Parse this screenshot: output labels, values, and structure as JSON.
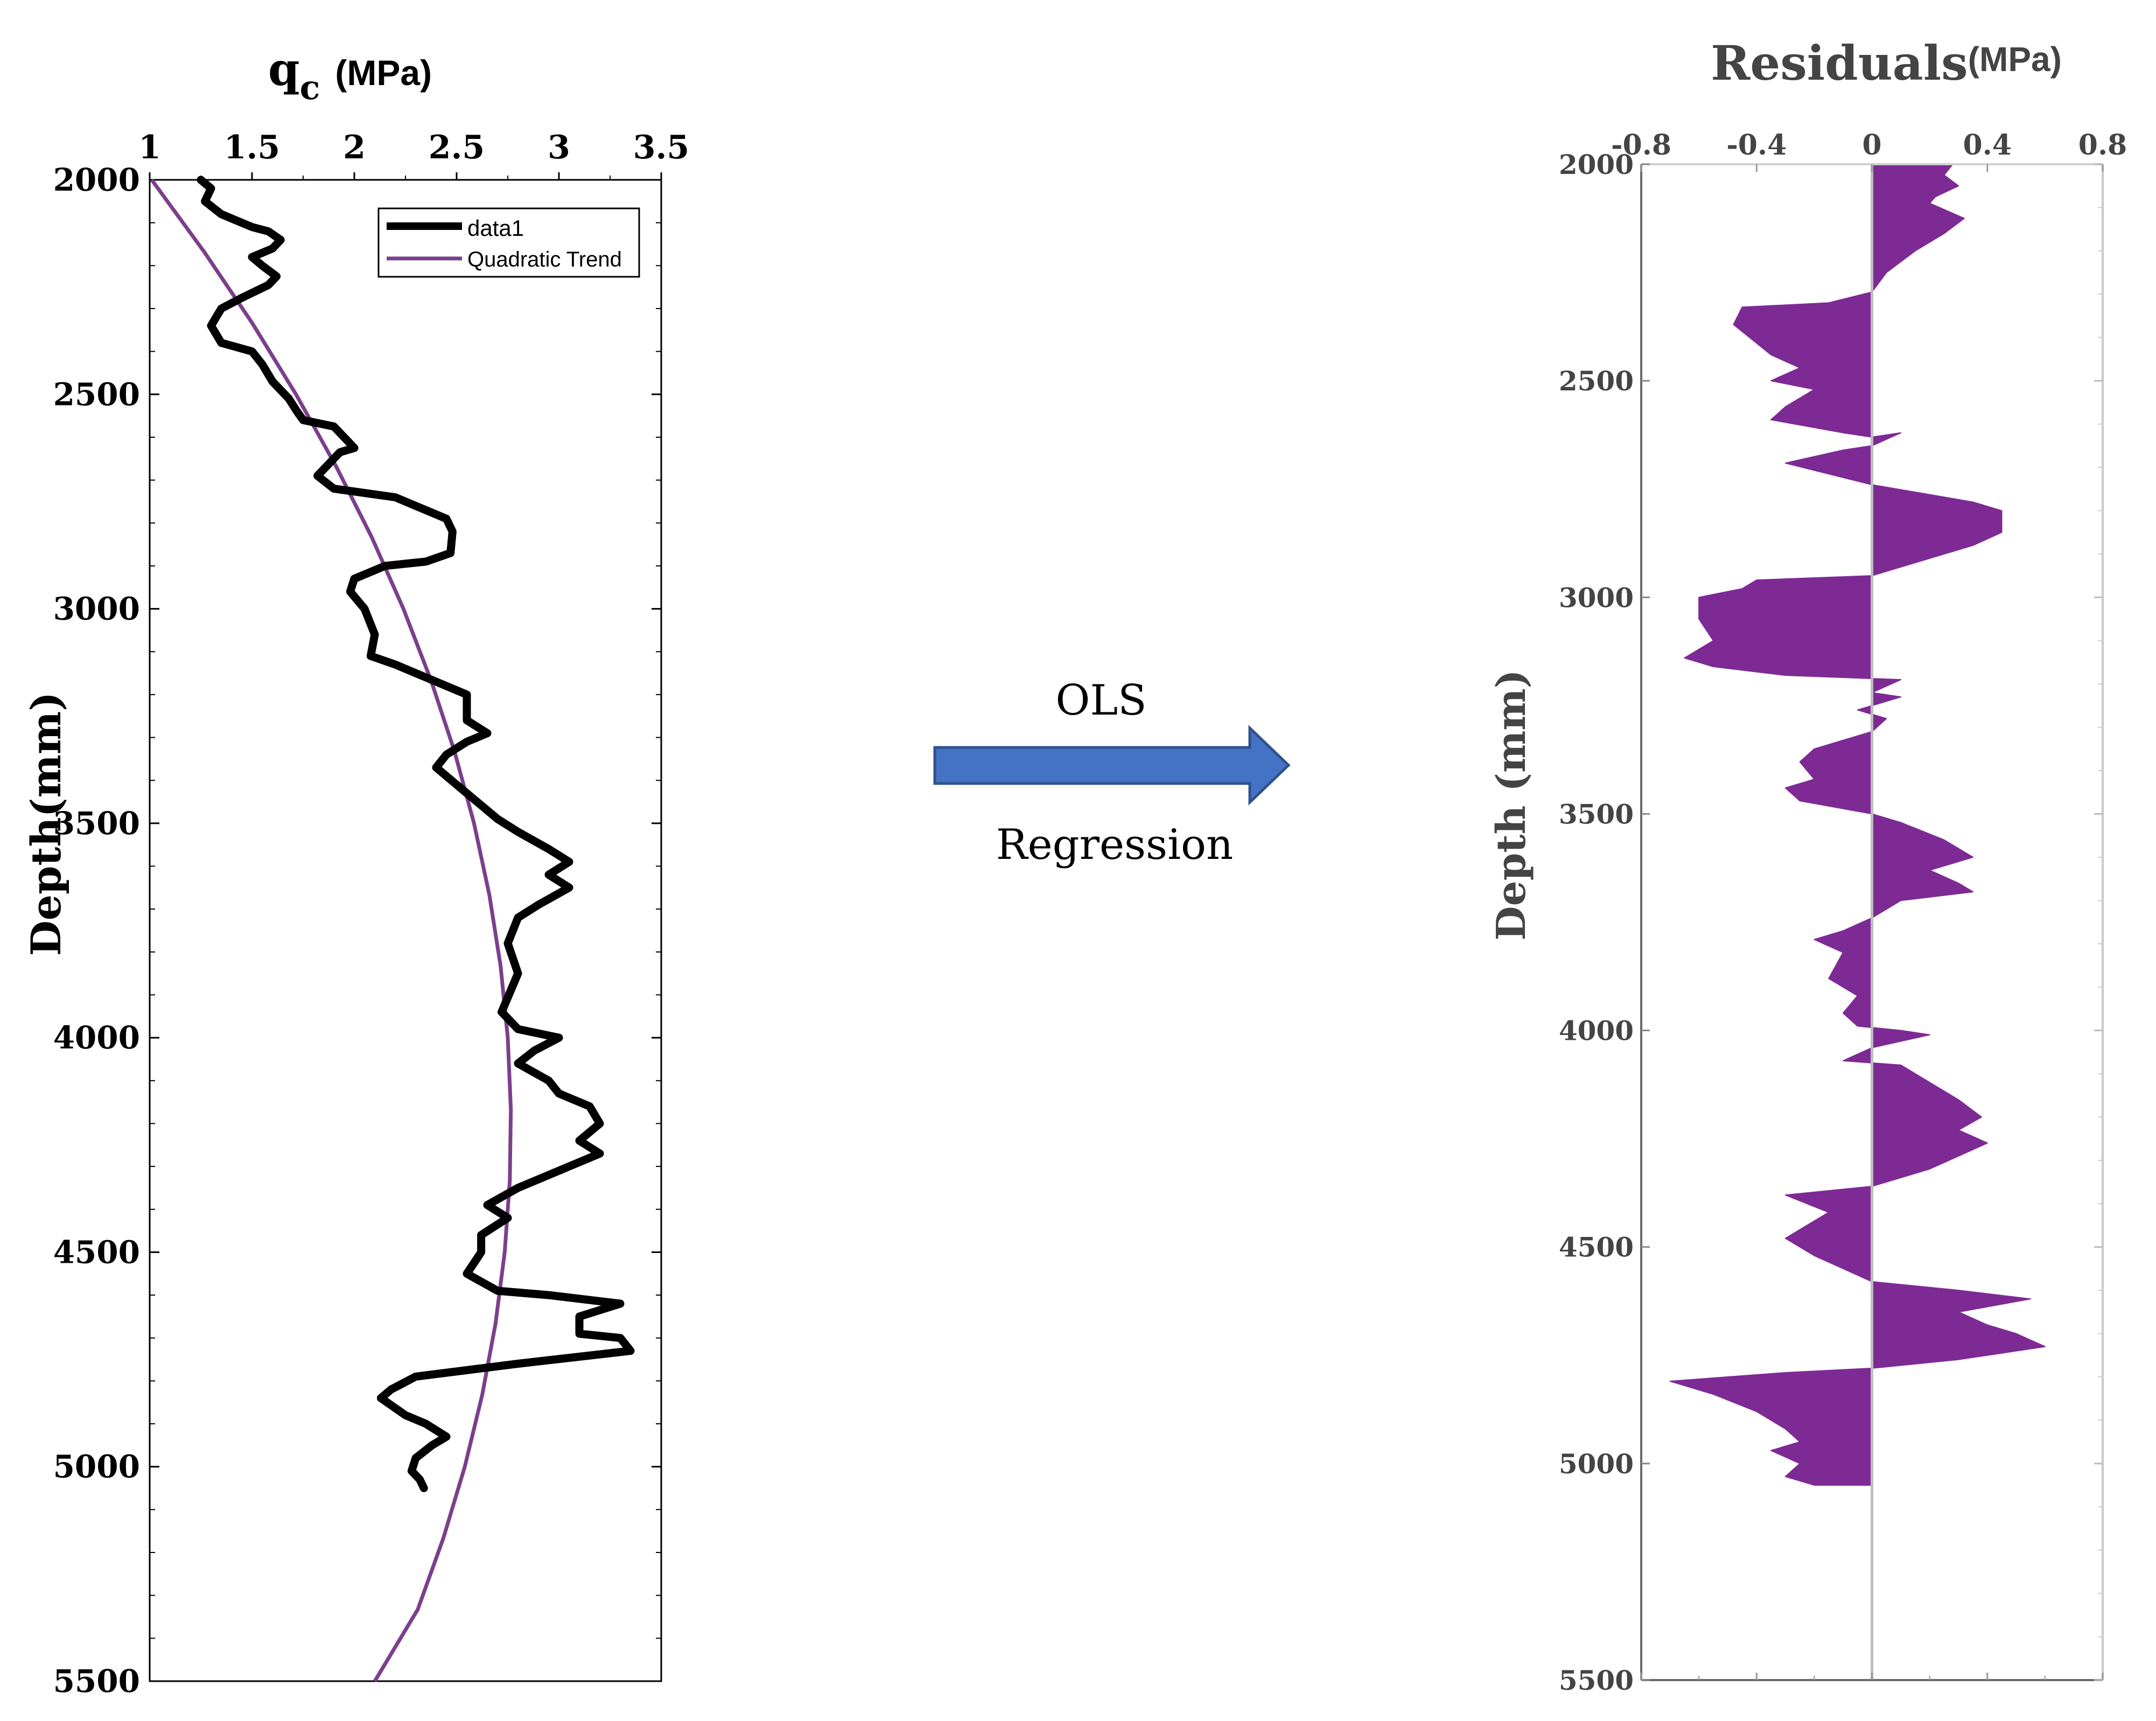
{
  "chart_data": [
    {
      "type": "line",
      "title": "q",
      "title_subscript": "c",
      "title_unit": "(MPa)",
      "ylabel": "Depth(mm)",
      "xlim": [
        1,
        3.5
      ],
      "ylim": [
        2000,
        5500
      ],
      "y_inverted": true,
      "x_ticks": [
        "1",
        "1.5",
        "2",
        "2.5",
        "3",
        "3.5"
      ],
      "y_ticks": [
        "2000",
        "2500",
        "3000",
        "3500",
        "4000",
        "4500",
        "5000",
        "5500"
      ],
      "grid": false,
      "legend_position": "top-right",
      "series": [
        {
          "name": "data1",
          "color": "#000000",
          "points": [
            [
              1.25,
              2000
            ],
            [
              1.3,
              2020
            ],
            [
              1.27,
              2050
            ],
            [
              1.35,
              2080
            ],
            [
              1.45,
              2100
            ],
            [
              1.5,
              2110
            ],
            [
              1.58,
              2120
            ],
            [
              1.64,
              2140
            ],
            [
              1.6,
              2160
            ],
            [
              1.5,
              2180
            ],
            [
              1.55,
              2200
            ],
            [
              1.62,
              2225
            ],
            [
              1.58,
              2245
            ],
            [
              1.45,
              2275
            ],
            [
              1.35,
              2300
            ],
            [
              1.3,
              2340
            ],
            [
              1.35,
              2380
            ],
            [
              1.5,
              2400
            ],
            [
              1.55,
              2430
            ],
            [
              1.6,
              2470
            ],
            [
              1.68,
              2510
            ],
            [
              1.72,
              2540
            ],
            [
              1.75,
              2560
            ],
            [
              1.9,
              2575
            ],
            [
              1.95,
              2600
            ],
            [
              2.0,
              2625
            ],
            [
              1.93,
              2635
            ],
            [
              1.82,
              2690
            ],
            [
              1.9,
              2720
            ],
            [
              2.2,
              2740
            ],
            [
              2.3,
              2760
            ],
            [
              2.45,
              2790
            ],
            [
              2.48,
              2820
            ],
            [
              2.47,
              2870
            ],
            [
              2.35,
              2890
            ],
            [
              2.15,
              2900
            ],
            [
              2.0,
              2930
            ],
            [
              1.98,
              2960
            ],
            [
              2.05,
              3000
            ],
            [
              2.1,
              3060
            ],
            [
              2.08,
              3110
            ],
            [
              2.2,
              3130
            ],
            [
              2.35,
              3160
            ],
            [
              2.5,
              3190
            ],
            [
              2.55,
              3200
            ],
            [
              2.55,
              3260
            ],
            [
              2.65,
              3290
            ],
            [
              2.55,
              3310
            ],
            [
              2.45,
              3340
            ],
            [
              2.4,
              3370
            ],
            [
              2.5,
              3410
            ],
            [
              2.6,
              3450
            ],
            [
              2.7,
              3490
            ],
            [
              2.8,
              3520
            ],
            [
              2.95,
              3560
            ],
            [
              3.05,
              3590
            ],
            [
              2.95,
              3620
            ],
            [
              3.05,
              3650
            ],
            [
              2.9,
              3690
            ],
            [
              2.8,
              3720
            ],
            [
              2.75,
              3780
            ],
            [
              2.8,
              3850
            ],
            [
              2.72,
              3940
            ],
            [
              2.8,
              3980
            ],
            [
              3.0,
              4000
            ],
            [
              2.88,
              4030
            ],
            [
              2.8,
              4060
            ],
            [
              2.95,
              4100
            ],
            [
              3.0,
              4130
            ],
            [
              3.15,
              4160
            ],
            [
              3.2,
              4200
            ],
            [
              3.1,
              4240
            ],
            [
              3.2,
              4270
            ],
            [
              3.0,
              4310
            ],
            [
              2.8,
              4350
            ],
            [
              2.65,
              4390
            ],
            [
              2.75,
              4420
            ],
            [
              2.62,
              4460
            ],
            [
              2.62,
              4500
            ],
            [
              2.55,
              4550
            ],
            [
              2.7,
              4590
            ],
            [
              2.95,
              4600
            ],
            [
              3.3,
              4620
            ],
            [
              3.1,
              4650
            ],
            [
              3.1,
              4690
            ],
            [
              3.3,
              4700
            ],
            [
              3.35,
              4730
            ],
            [
              2.8,
              4760
            ],
            [
              2.3,
              4790
            ],
            [
              2.18,
              4820
            ],
            [
              2.13,
              4840
            ],
            [
              2.25,
              4880
            ],
            [
              2.35,
              4900
            ],
            [
              2.45,
              4930
            ],
            [
              2.38,
              4950
            ],
            [
              2.3,
              4980
            ],
            [
              2.28,
              5010
            ],
            [
              2.32,
              5030
            ],
            [
              2.34,
              5050
            ]
          ]
        },
        {
          "name": "Quadratic Trend",
          "color": "#7b3f8c",
          "points": [
            [
              1.01,
              2000
            ],
            [
              1.265,
              2167
            ],
            [
              1.5,
              2333
            ],
            [
              1.715,
              2500
            ],
            [
              1.91,
              2667
            ],
            [
              2.085,
              2833
            ],
            [
              2.24,
              3000
            ],
            [
              2.375,
              3167
            ],
            [
              2.49,
              3333
            ],
            [
              2.585,
              3500
            ],
            [
              2.66,
              3667
            ],
            [
              2.715,
              3833
            ],
            [
              2.75,
              4000
            ],
            [
              2.765,
              4167
            ],
            [
              2.76,
              4333
            ],
            [
              2.735,
              4500
            ],
            [
              2.69,
              4667
            ],
            [
              2.625,
              4833
            ],
            [
              2.54,
              5000
            ],
            [
              2.435,
              5167
            ],
            [
              2.31,
              5333
            ],
            [
              2.1,
              5500
            ]
          ]
        }
      ]
    },
    {
      "type": "area",
      "title": "Residuals",
      "title_unit": "(MPa)",
      "ylabel": "Depth (mm)",
      "xlim": [
        -0.8,
        0.8
      ],
      "ylim": [
        2000,
        5500
      ],
      "y_inverted": true,
      "x_ticks": [
        "-0.8",
        "-0.4",
        "0",
        "0.4",
        "0.8"
      ],
      "y_ticks": [
        "2000",
        "2500",
        "3000",
        "3500",
        "4000",
        "4500",
        "5000",
        "5500"
      ],
      "grid": false,
      "fill_color": "#7e2a95",
      "series": [
        {
          "name": "",
          "points": [
            [
              0.28,
              2000
            ],
            [
              0.25,
              2025
            ],
            [
              0.3,
              2050
            ],
            [
              0.22,
              2075
            ],
            [
              0.2,
              2090
            ],
            [
              0.32,
              2125
            ],
            [
              0.25,
              2160
            ],
            [
              0.15,
              2200
            ],
            [
              0.05,
              2250
            ],
            [
              0.0,
              2295
            ],
            [
              -0.15,
              2320
            ],
            [
              -0.45,
              2330
            ],
            [
              -0.48,
              2370
            ],
            [
              -0.35,
              2440
            ],
            [
              -0.25,
              2470
            ],
            [
              -0.35,
              2500
            ],
            [
              -0.2,
              2520
            ],
            [
              -0.3,
              2560
            ],
            [
              -0.35,
              2590
            ],
            [
              -0.1,
              2620
            ],
            [
              0.0,
              2630
            ],
            [
              0.1,
              2620
            ],
            [
              0.0,
              2650
            ],
            [
              -0.1,
              2660
            ],
            [
              -0.3,
              2690
            ],
            [
              0.0,
              2740
            ],
            [
              0.35,
              2780
            ],
            [
              0.45,
              2800
            ],
            [
              0.45,
              2850
            ],
            [
              0.35,
              2880
            ],
            [
              0.15,
              2920
            ],
            [
              0.0,
              2950
            ],
            [
              -0.4,
              2960
            ],
            [
              -0.45,
              2980
            ],
            [
              -0.6,
              3000
            ],
            [
              -0.6,
              3050
            ],
            [
              -0.55,
              3100
            ],
            [
              -0.65,
              3140
            ],
            [
              -0.55,
              3160
            ],
            [
              -0.3,
              3180
            ],
            [
              0.1,
              3190
            ],
            [
              0.0,
              3220
            ],
            [
              0.1,
              3230
            ],
            [
              -0.05,
              3260
            ],
            [
              0.05,
              3280
            ],
            [
              0.0,
              3310
            ],
            [
              -0.1,
              3330
            ],
            [
              -0.2,
              3350
            ],
            [
              -0.25,
              3380
            ],
            [
              -0.2,
              3420
            ],
            [
              -0.3,
              3440
            ],
            [
              -0.25,
              3470
            ],
            [
              0.0,
              3500
            ],
            [
              0.1,
              3520
            ],
            [
              0.25,
              3560
            ],
            [
              0.35,
              3600
            ],
            [
              0.2,
              3630
            ],
            [
              0.3,
              3660
            ],
            [
              0.35,
              3680
            ],
            [
              0.1,
              3700
            ],
            [
              0.0,
              3740
            ],
            [
              -0.1,
              3770
            ],
            [
              -0.2,
              3790
            ],
            [
              -0.1,
              3820
            ],
            [
              -0.15,
              3880
            ],
            [
              -0.05,
              3920
            ],
            [
              -0.1,
              3960
            ],
            [
              -0.05,
              3990
            ],
            [
              0.1,
              4000
            ],
            [
              0.2,
              4010
            ],
            [
              0.0,
              4040
            ],
            [
              -0.1,
              4070
            ],
            [
              0.1,
              4080
            ],
            [
              0.2,
              4120
            ],
            [
              0.3,
              4160
            ],
            [
              0.38,
              4200
            ],
            [
              0.3,
              4230
            ],
            [
              0.4,
              4260
            ],
            [
              0.3,
              4290
            ],
            [
              0.2,
              4320
            ],
            [
              0.0,
              4360
            ],
            [
              -0.3,
              4380
            ],
            [
              -0.15,
              4420
            ],
            [
              -0.3,
              4480
            ],
            [
              -0.2,
              4520
            ],
            [
              -0.1,
              4550
            ],
            [
              0.0,
              4580
            ],
            [
              0.3,
              4600
            ],
            [
              0.55,
              4620
            ],
            [
              0.3,
              4650
            ],
            [
              0.4,
              4680
            ],
            [
              0.5,
              4700
            ],
            [
              0.6,
              4730
            ],
            [
              0.3,
              4760
            ],
            [
              0.0,
              4780
            ],
            [
              -0.3,
              4790
            ],
            [
              -0.7,
              4810
            ],
            [
              -0.55,
              4840
            ],
            [
              -0.4,
              4880
            ],
            [
              -0.3,
              4920
            ],
            [
              -0.25,
              4950
            ],
            [
              -0.35,
              4970
            ],
            [
              -0.25,
              5000
            ],
            [
              -0.3,
              5030
            ],
            [
              -0.2,
              5050
            ]
          ]
        }
      ]
    }
  ],
  "arrow": {
    "label_top": "OLS",
    "label_bottom": "Regression",
    "color": "#4472c4",
    "border_color": "#2f528f"
  }
}
